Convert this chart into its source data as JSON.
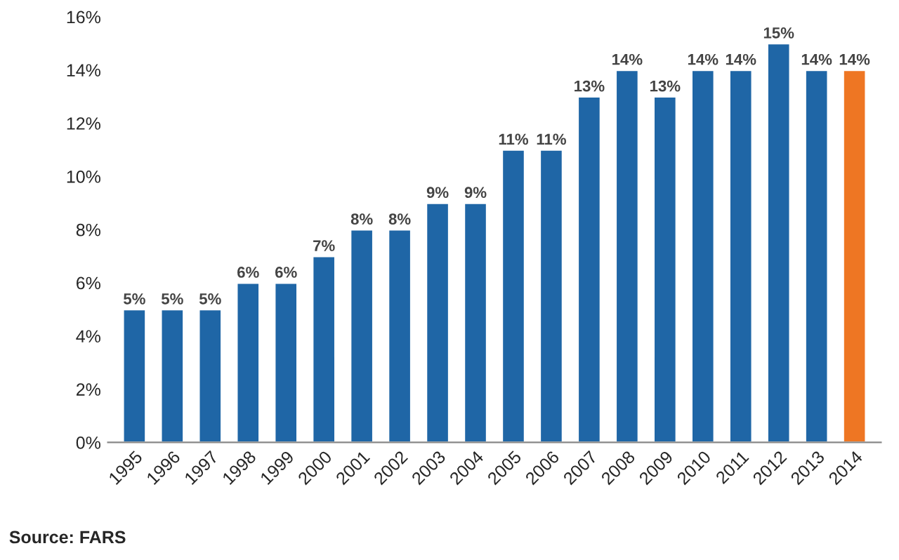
{
  "chart_data": {
    "type": "bar",
    "categories": [
      "1995",
      "1996",
      "1997",
      "1998",
      "1999",
      "2000",
      "2001",
      "2002",
      "2003",
      "2004",
      "2005",
      "2006",
      "2007",
      "2008",
      "2009",
      "2010",
      "2011",
      "2012",
      "2013",
      "2014"
    ],
    "values": [
      5,
      5,
      5,
      6,
      6,
      7,
      8,
      8,
      9,
      9,
      11,
      11,
      13,
      14,
      13,
      14,
      14,
      15,
      14,
      14
    ],
    "value_labels": [
      "5%",
      "5%",
      "5%",
      "6%",
      "6%",
      "7%",
      "8%",
      "8%",
      "9%",
      "9%",
      "11%",
      "11%",
      "13%",
      "14%",
      "13%",
      "14%",
      "14%",
      "15%",
      "14%",
      "14%"
    ],
    "colors": [
      "#1f66a6",
      "#1f66a6",
      "#1f66a6",
      "#1f66a6",
      "#1f66a6",
      "#1f66a6",
      "#1f66a6",
      "#1f66a6",
      "#1f66a6",
      "#1f66a6",
      "#1f66a6",
      "#1f66a6",
      "#1f66a6",
      "#1f66a6",
      "#1f66a6",
      "#1f66a6",
      "#1f66a6",
      "#1f66a6",
      "#1f66a6",
      "#ee7623"
    ],
    "ylim": [
      0,
      16
    ],
    "yticks": [
      {
        "value": 0,
        "label": "0%"
      },
      {
        "value": 2,
        "label": "2%"
      },
      {
        "value": 4,
        "label": "4%"
      },
      {
        "value": 6,
        "label": "6%"
      },
      {
        "value": 8,
        "label": "8%"
      },
      {
        "value": 10,
        "label": "10%"
      },
      {
        "value": 12,
        "label": "12%"
      },
      {
        "value": 14,
        "label": "14%"
      },
      {
        "value": 16,
        "label": "16%"
      }
    ],
    "annotations": [
      "Source: FARS"
    ]
  }
}
